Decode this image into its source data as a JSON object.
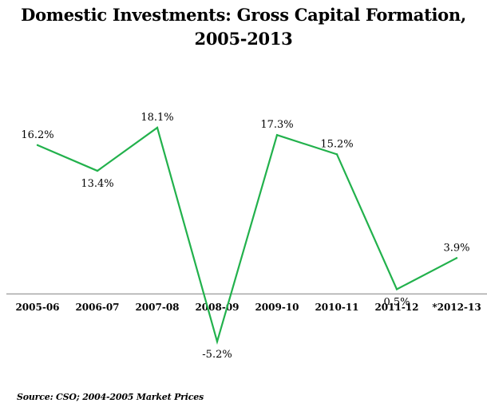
{
  "chart_data": {
    "type": "line",
    "title_line1": "Domestic Investments: Gross Capital Formation,",
    "title_line2": "2005-2013",
    "categories": [
      "2005-06",
      "2006-07",
      "2007-08",
      "2008-09",
      "2009-10",
      "2010-11",
      "2011-12",
      "*2012-13"
    ],
    "series": [
      {
        "values": [
          16.2,
          13.4,
          18.1,
          -5.2,
          17.3,
          15.2,
          0.5,
          3.9
        ],
        "labels": [
          "16.2%",
          "13.4%",
          "18.1%",
          "-5.2%",
          "17.3%",
          "15.2%",
          "0.5%",
          "3.9%"
        ],
        "color": "#22b14c"
      }
    ],
    "xlabel": "",
    "ylabel": "",
    "ylim": [
      -5.2,
      18.1
    ],
    "grid": false,
    "axis_color": "#808080",
    "source": "Source: CSO; 2004-2005 Market Prices"
  }
}
